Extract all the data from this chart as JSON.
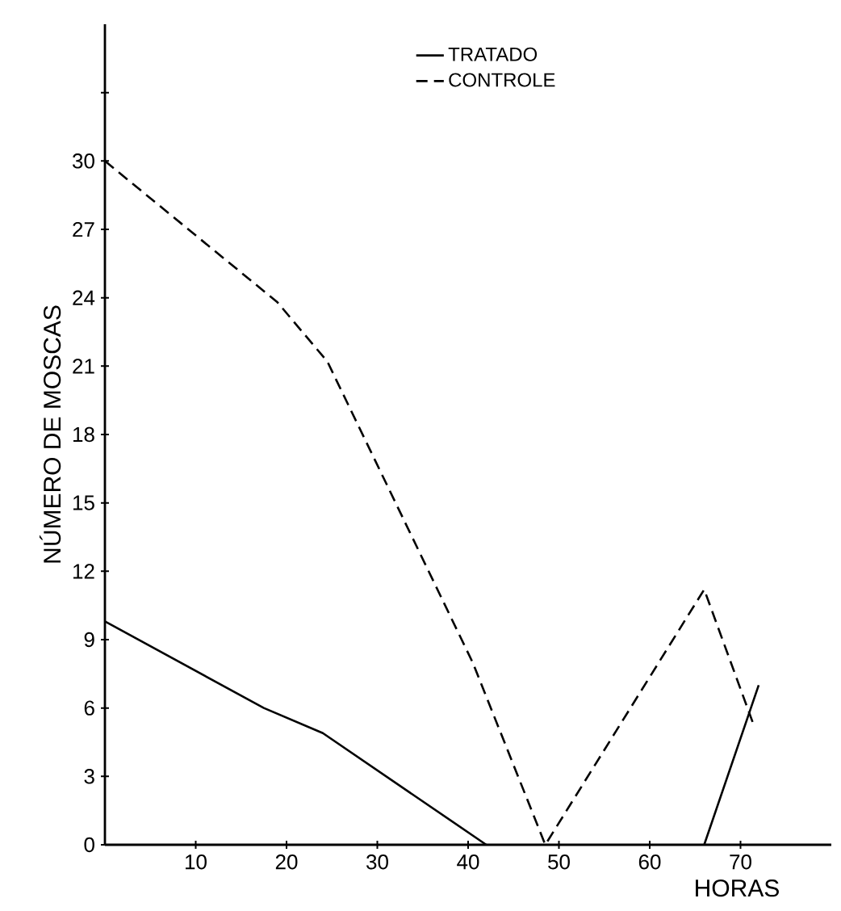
{
  "chart_data": {
    "type": "line",
    "xlabel": "HORAS",
    "ylabel": "NÚMERO DE MOSCAS",
    "xlim": [
      0,
      80
    ],
    "ylim": [
      0,
      36
    ],
    "xticks": [
      10,
      20,
      30,
      40,
      50,
      60,
      70
    ],
    "yticks": [
      0,
      3,
      6,
      9,
      12,
      15,
      18,
      21,
      24,
      27,
      30,
      {
        "value": 33,
        "label": null
      }
    ],
    "legend": "top",
    "series": [
      {
        "name": "TRATADO",
        "color": "#000000",
        "line_style": "solid",
        "x": [
          0,
          17.5,
          24,
          42,
          54,
          66,
          72
        ],
        "values": [
          9.8,
          6,
          4.9,
          0,
          null,
          0,
          7
        ]
      },
      {
        "name": "CONTROLE",
        "color": "#000000",
        "line_style": "dashed",
        "x": [
          0,
          19,
          24.5,
          40.5,
          48.5,
          66,
          71.5
        ],
        "values": [
          30,
          23.8,
          21.2,
          8,
          0,
          11.2,
          5.2
        ]
      }
    ]
  }
}
